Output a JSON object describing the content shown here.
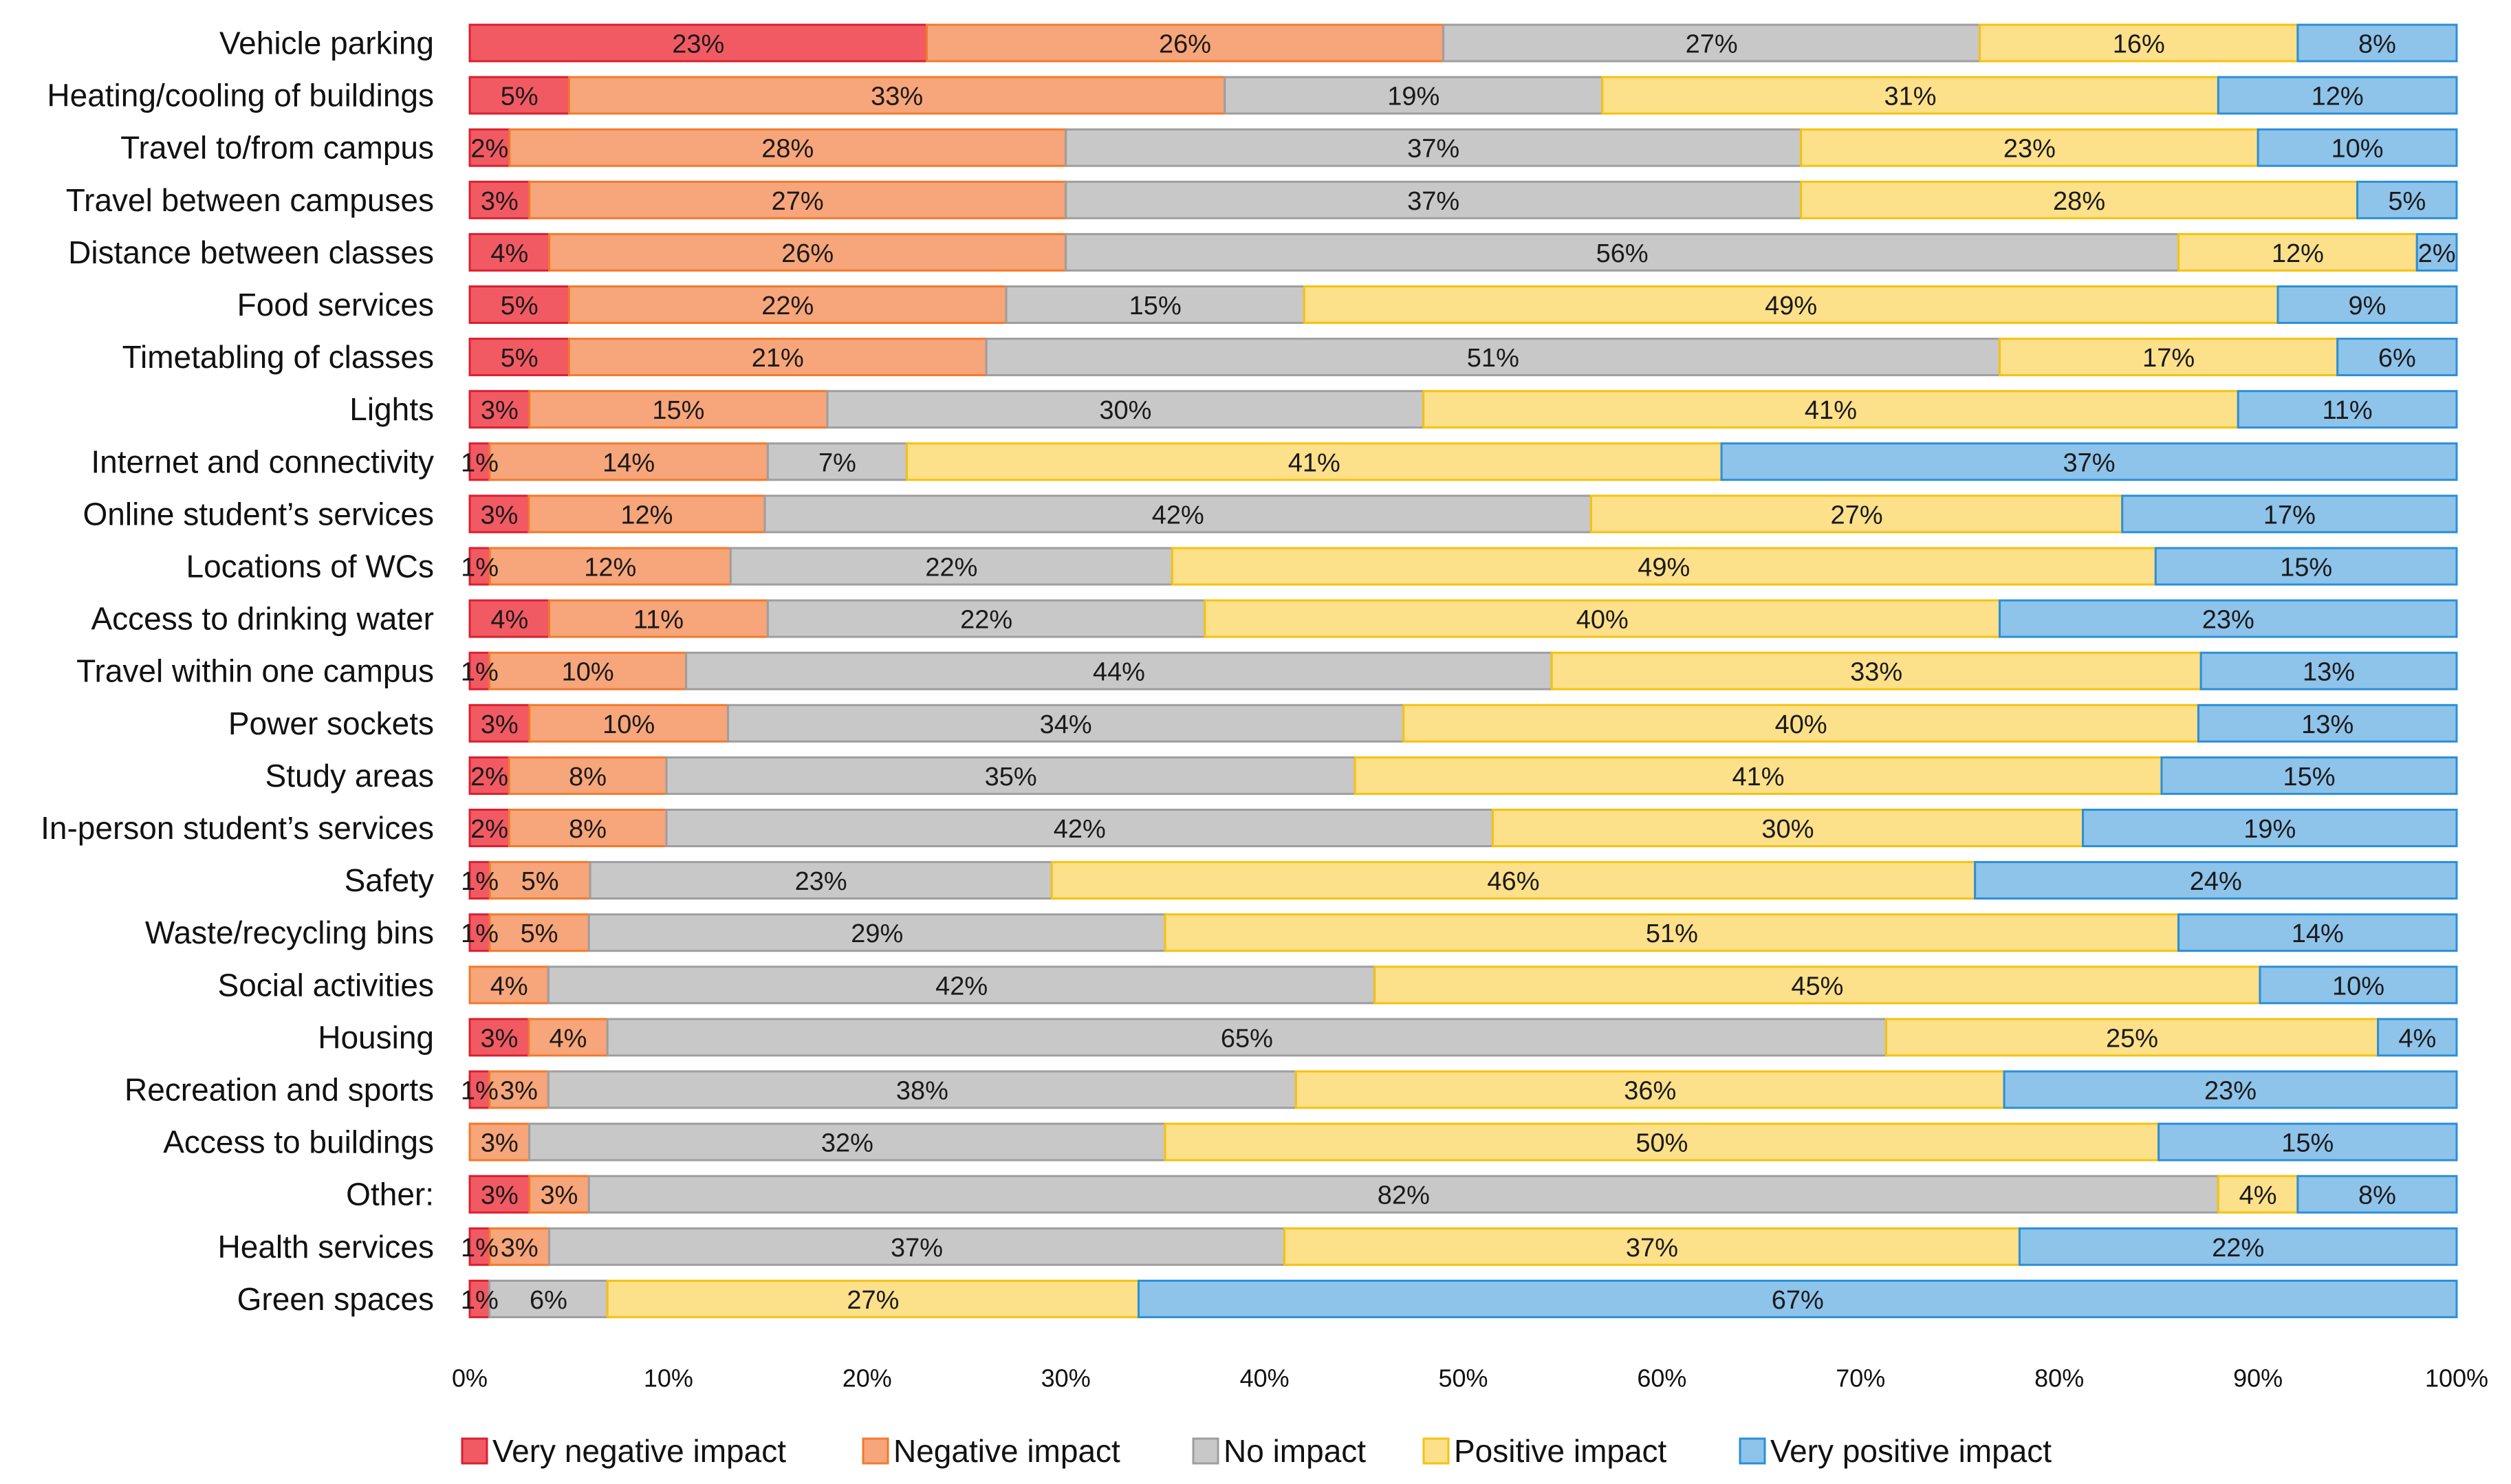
{
  "chart_data": {
    "type": "bar",
    "orientation": "horizontal",
    "stacked": true,
    "percent_stacked": true,
    "title": "",
    "xlabel": "",
    "ylabel": "",
    "xlim": [
      0,
      100
    ],
    "x_ticks": [
      "0%",
      "10%",
      "20%",
      "30%",
      "40%",
      "50%",
      "60%",
      "70%",
      "80%",
      "90%",
      "100%"
    ],
    "legend_position": "bottom",
    "categories": [
      "Vehicle parking",
      "Heating/cooling of buildings",
      "Travel to/from campus",
      "Travel between campuses",
      "Distance between classes",
      "Food services",
      "Timetabling of classes",
      "Lights",
      "Internet and connectivity",
      "Online student’s services",
      "Locations of WCs",
      "Access to drinking water",
      "Travel within one campus",
      "Power sockets",
      "Study areas",
      "In-person student’s services",
      "Safety",
      "Waste/recycling bins",
      "Social activities",
      "Housing",
      "Recreation and sports",
      "Access to buildings",
      "Other:",
      "Health services",
      "Green spaces"
    ],
    "series": [
      {
        "name": "Very negative impact",
        "fill": "#f25a63",
        "stroke": "#d92030",
        "values": [
          23,
          5,
          2,
          3,
          4,
          5,
          5,
          3,
          1,
          3,
          1,
          4,
          1,
          3,
          2,
          2,
          1,
          1,
          0,
          3,
          1,
          0,
          3,
          1,
          1
        ]
      },
      {
        "name": "Negative impact",
        "fill": "#f7a57a",
        "stroke": "#f07b2c",
        "values": [
          26,
          33,
          28,
          27,
          26,
          22,
          21,
          15,
          14,
          12,
          12,
          11,
          10,
          10,
          8,
          8,
          5,
          5,
          4,
          4,
          3,
          3,
          3,
          3,
          0
        ]
      },
      {
        "name": "No impact",
        "fill": "#c8c8c8",
        "stroke": "#9e9e9e",
        "values": [
          27,
          19,
          37,
          37,
          56,
          15,
          51,
          30,
          7,
          42,
          22,
          22,
          44,
          34,
          35,
          42,
          23,
          29,
          42,
          65,
          38,
          32,
          82,
          37,
          6
        ]
      },
      {
        "name": "Positive impact",
        "fill": "#fce08a",
        "stroke": "#f5c211",
        "values": [
          16,
          31,
          23,
          28,
          12,
          49,
          17,
          41,
          41,
          27,
          49,
          40,
          33,
          40,
          41,
          30,
          46,
          51,
          45,
          25,
          36,
          50,
          4,
          37,
          27
        ]
      },
      {
        "name": "Very positive impact",
        "fill": "#8ec3ea",
        "stroke": "#2b8fd6",
        "values": [
          8,
          12,
          10,
          5,
          2,
          9,
          6,
          11,
          37,
          17,
          15,
          23,
          13,
          13,
          15,
          19,
          24,
          14,
          10,
          4,
          23,
          15,
          8,
          22,
          67
        ]
      }
    ]
  }
}
